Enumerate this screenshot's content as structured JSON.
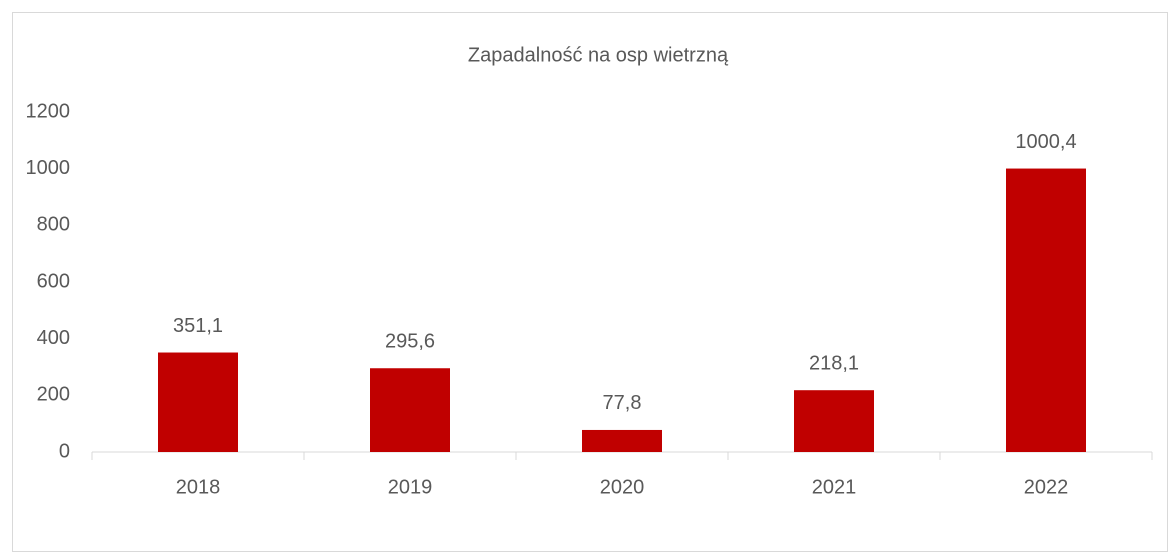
{
  "chart_data": {
    "type": "bar",
    "title": "Zapadalność na osp wietrzną",
    "categories": [
      "2018",
      "2019",
      "2020",
      "2021",
      "2022"
    ],
    "values": [
      351.1,
      295.6,
      77.8,
      218.1,
      1000.4
    ],
    "value_labels": [
      "351,1",
      "295,6",
      "77,8",
      "218,1",
      "1000,4"
    ],
    "color": "#c00000",
    "ylim": [
      0,
      1200
    ],
    "yticks": [
      0,
      200,
      400,
      600,
      800,
      1000,
      1200
    ],
    "grid": false
  }
}
